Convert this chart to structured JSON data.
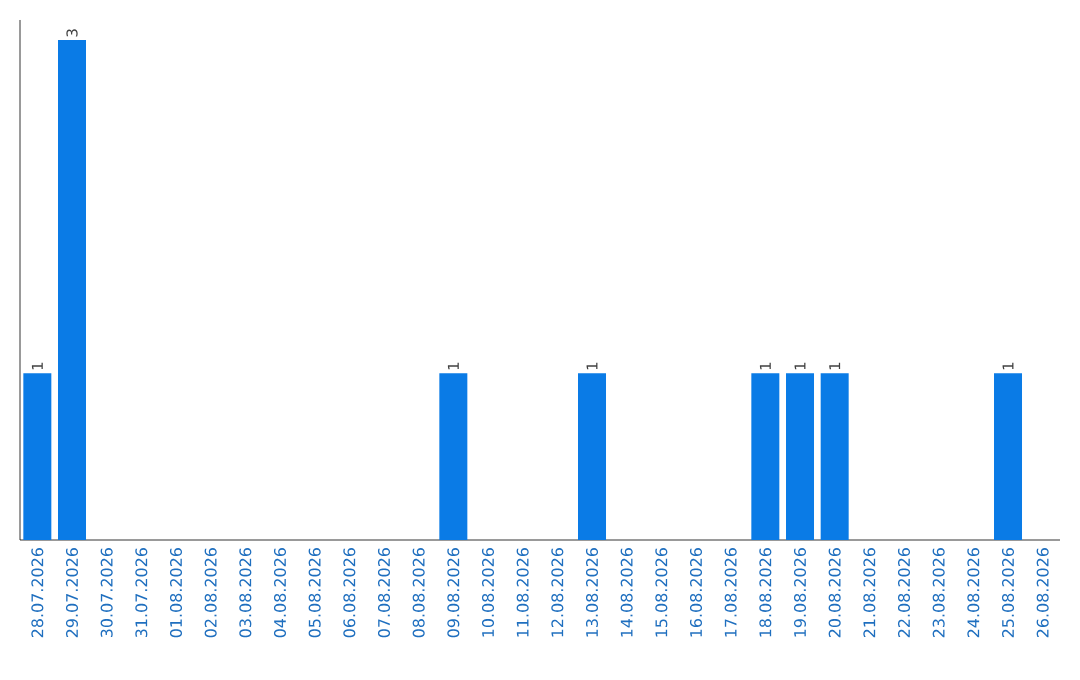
{
  "chart_data": {
    "type": "bar",
    "relative": false,
    "categories": [
      "28.07.2026",
      "29.07.2026",
      "30.07.2026",
      "31.07.2026",
      "01.08.2026",
      "02.08.2026",
      "03.08.2026",
      "04.08.2026",
      "05.08.2026",
      "06.08.2026",
      "07.08.2026",
      "08.08.2026",
      "09.08.2026",
      "10.08.2026",
      "11.08.2026",
      "12.08.2026",
      "13.08.2026",
      "14.08.2026",
      "15.08.2026",
      "16.08.2026",
      "17.08.2026",
      "18.08.2026",
      "19.08.2026",
      "20.08.2026",
      "21.08.2026",
      "22.08.2026",
      "23.08.2026",
      "24.08.2026",
      "25.08.2026",
      "26.08.2026"
    ],
    "values": [
      1,
      3,
      0,
      0,
      0,
      0,
      0,
      0,
      0,
      0,
      0,
      0,
      1,
      0,
      0,
      0,
      1,
      0,
      0,
      0,
      0,
      1,
      1,
      1,
      0,
      0,
      0,
      0,
      1,
      0
    ],
    "value_labels": [
      "1",
      "3",
      null,
      null,
      null,
      null,
      null,
      null,
      null,
      null,
      null,
      null,
      "1",
      null,
      null,
      null,
      "1",
      null,
      null,
      null,
      null,
      "1",
      "1",
      "1",
      null,
      null,
      null,
      null,
      "1",
      null
    ],
    "color": "#0a7be6"
  }
}
